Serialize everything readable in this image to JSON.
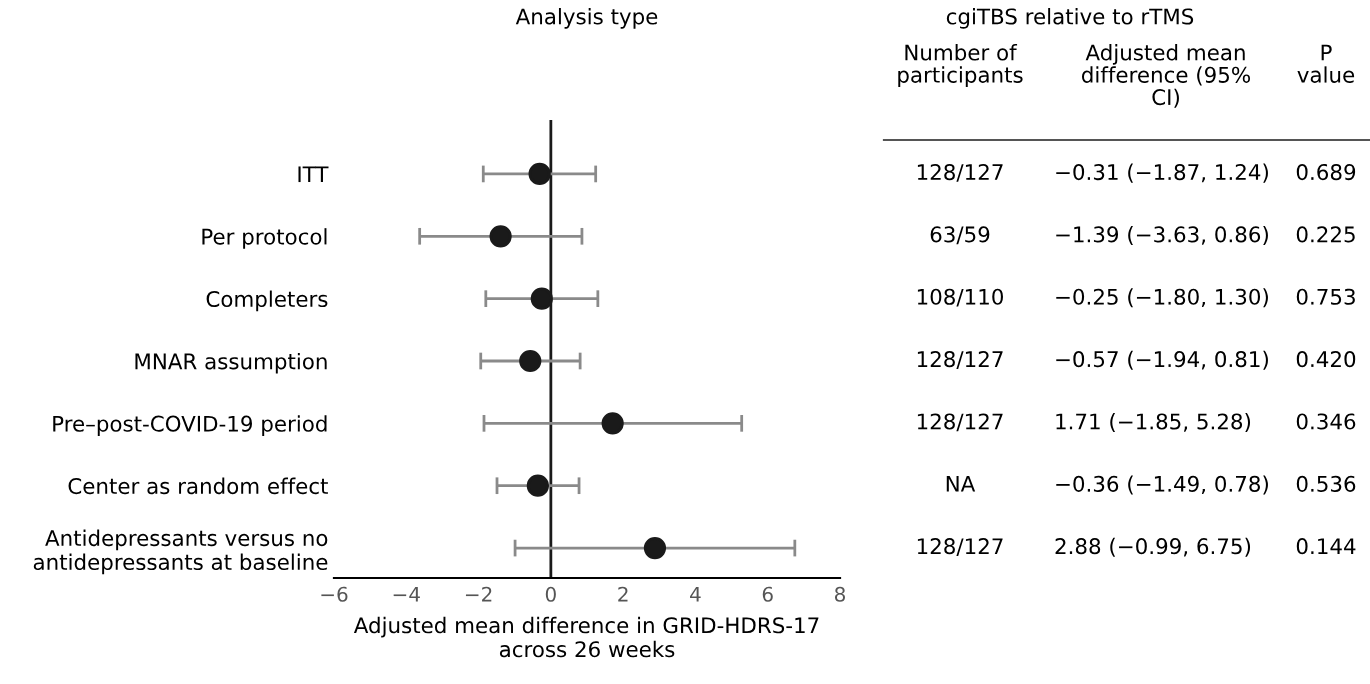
{
  "chart_data": {
    "type": "scatter",
    "orientation": "horizontal",
    "title": "Analysis type",
    "xlabel": "Adjusted mean difference in GRID-HDRS-17\nacross 26 weeks",
    "categories": [
      "ITT",
      "Per protocol",
      "Completers",
      "MNAR assumption",
      "Pre–post-COVID-19 period",
      "Center as random effect",
      "Antidepressants versus no\nantidepressants at baseline"
    ],
    "color": "#1a1a1a",
    "values": [
      -0.31,
      -1.39,
      -0.25,
      -0.57,
      1.71,
      -0.36,
      2.88
    ],
    "errors": [
      [
        -1.87,
        1.24
      ],
      [
        -3.63,
        0.86
      ],
      [
        -1.8,
        1.3
      ],
      [
        -1.94,
        0.81
      ],
      [
        -1.85,
        5.28
      ],
      [
        -1.49,
        0.78
      ],
      [
        -0.99,
        6.75
      ]
    ],
    "xlim": [
      -6,
      8
    ],
    "xticks": [
      {
        "value": -6,
        "label": "−6"
      },
      {
        "value": -4,
        "label": "−4"
      },
      {
        "value": -2,
        "label": "−2"
      },
      0,
      2,
      4,
      6,
      8
    ],
    "ref_lines": [
      {
        "axis": "x",
        "value": 0,
        "color": "#1a1a1a"
      }
    ],
    "marker": "circle",
    "grid": false,
    "annotations": [
      "cgiTBS relative to rTMS",
      "Number of\nparticipants",
      "Adjusted mean\ndifference (95%\nCI)",
      "P\nvalue",
      "128/127",
      "63/59",
      "108/110",
      "128/127",
      "128/127",
      "NA",
      "128/127",
      "−0.31 (−1.87, 1.24)",
      "−1.39 (−3.63, 0.86)",
      "−0.25 (−1.80, 1.30)",
      "−0.57 (−1.94, 0.81)",
      "1.71 (−1.85, 5.28)",
      "−0.36 (−1.49, 0.78)",
      "2.88 (−0.99, 6.75)",
      "0.689",
      "0.225",
      "0.753",
      "0.420",
      "0.346",
      "0.536",
      "0.144"
    ]
  }
}
